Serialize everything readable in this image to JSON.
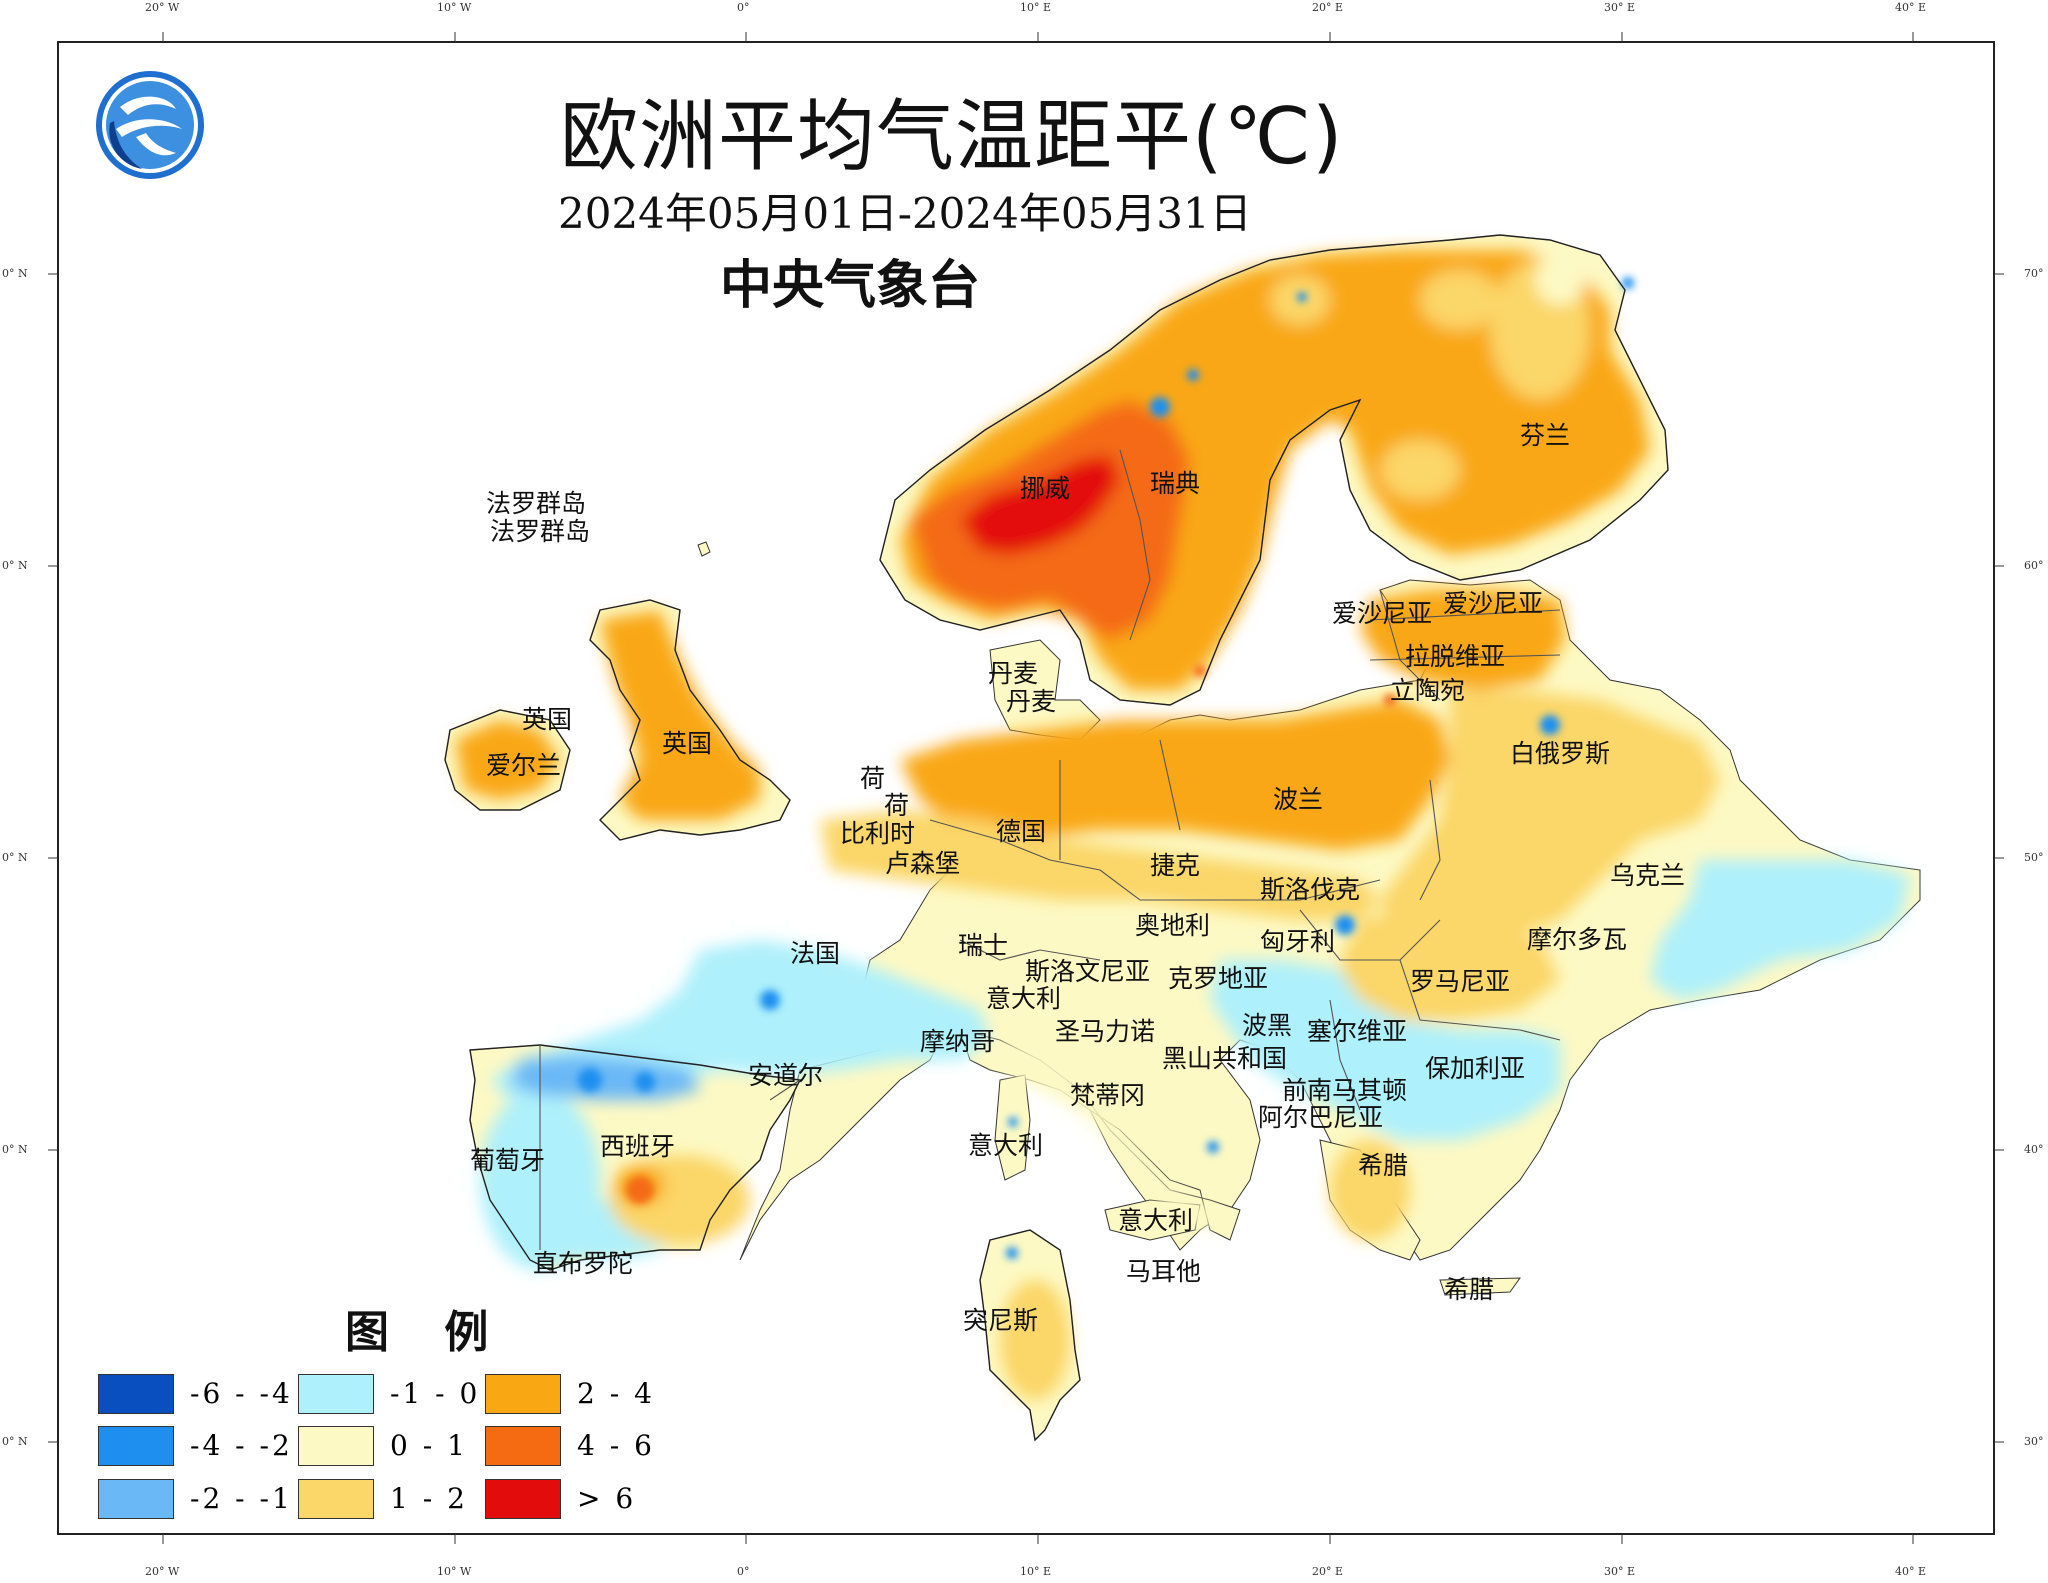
{
  "title": "欧洲平均气温距平(℃)",
  "date_range": "2024年05月01日-2024年05月31日",
  "agency": "中央气象台",
  "legend": {
    "title": "图 例",
    "items": [
      {
        "label": "-6 - -4",
        "color": "#0a4fbf"
      },
      {
        "label": "-4 - -2",
        "color": "#1e8fef"
      },
      {
        "label": "-2 - -1",
        "color": "#6ab8f6"
      },
      {
        "label": "-1 - 0",
        "color": "#aef0fb"
      },
      {
        "label": "0 - 1",
        "color": "#fdf9c4"
      },
      {
        "label": "1 - 2",
        "color": "#fbd668"
      },
      {
        "label": "2 - 4",
        "color": "#f9a712"
      },
      {
        "label": "4 - 6",
        "color": "#f46b12"
      },
      {
        "label": "> 6",
        "color": "#e30c0c"
      }
    ]
  },
  "axes": {
    "top": [
      "20° W",
      "10° W",
      "0°",
      "10° E",
      "20° E",
      "30° E",
      "40° E"
    ],
    "bottom": [
      "20° W",
      "10° W",
      "0°",
      "10° E",
      "20° E",
      "30° E",
      "40° E"
    ],
    "left": [
      "0° N",
      "0° N",
      "0° N",
      "0° N",
      "0° N"
    ],
    "right": [
      "70°",
      "60°",
      "50°",
      "40°",
      "30°"
    ]
  },
  "countries": [
    "法罗群岛",
    "法罗群岛",
    "挪威",
    "瑞典",
    "芬兰",
    "爱沙尼亚",
    "爱沙尼亚",
    "拉脱维亚",
    "立陶宛",
    "丹麦",
    "丹麦",
    "英国",
    "英国",
    "爱尔兰",
    "白俄罗斯",
    "荷",
    "荷",
    "比利时",
    "卢森堡",
    "德国",
    "波兰",
    "捷克",
    "斯洛伐克",
    "乌克兰",
    "奥地利",
    "匈牙利",
    "摩尔多瓦",
    "法国",
    "瑞士",
    "斯洛文尼亚",
    "克罗地亚",
    "罗马尼亚",
    "意大利",
    "圣马力诺",
    "波黑",
    "塞尔维亚",
    "摩纳哥",
    "黑山共和国",
    "保加利亚",
    "安道尔",
    "梵蒂冈",
    "前南马其顿",
    "阿尔巴尼亚",
    "葡萄牙",
    "西班牙",
    "意大利",
    "希腊",
    "意大利",
    "直布罗陀",
    "马耳他",
    "希腊",
    "突尼斯"
  ]
}
